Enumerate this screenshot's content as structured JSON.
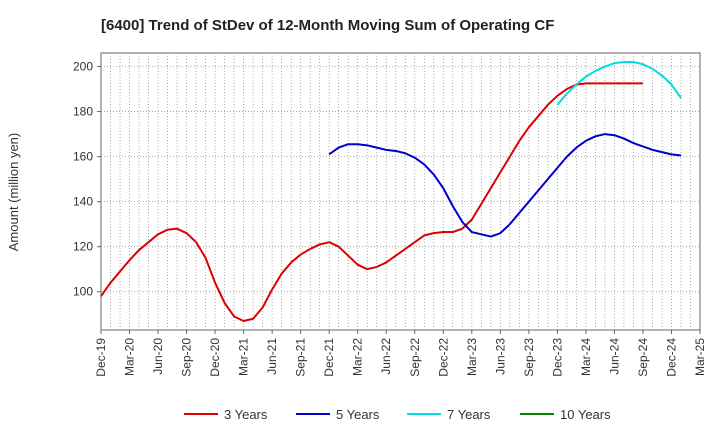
{
  "chart_data": {
    "type": "line",
    "title": "[6400]  Trend of StDev of 12-Month Moving Sum of Operating CF",
    "xlabel": "",
    "ylabel": "Amount (million yen)",
    "ylim": [
      83,
      206
    ],
    "yticks": [
      100,
      120,
      140,
      160,
      180,
      200
    ],
    "x_tick_labels": [
      "Dec-19",
      "Mar-20",
      "Jun-20",
      "Sep-20",
      "Dec-20",
      "Mar-21",
      "Jun-21",
      "Sep-21",
      "Dec-21",
      "Mar-22",
      "Jun-22",
      "Sep-22",
      "Dec-22",
      "Mar-23",
      "Jun-23",
      "Sep-23",
      "Dec-23",
      "Mar-24",
      "Jun-24",
      "Sep-24",
      "Dec-24",
      "Mar-25"
    ],
    "grid": true,
    "legend_position": "bottom",
    "series": [
      {
        "name": "3 Years",
        "color": "#dd0000",
        "start_month": 0,
        "values": [
          98,
          104,
          109,
          114,
          118.5,
          122,
          125.5,
          127.5,
          128,
          126,
          122,
          115,
          104,
          95,
          89,
          87,
          88,
          93,
          101,
          108,
          113,
          116.5,
          119,
          121,
          122,
          120,
          116,
          112,
          110,
          111,
          113,
          116,
          119,
          122,
          125,
          126,
          126.5,
          126.5,
          128,
          132,
          139,
          146,
          153,
          160,
          167,
          173,
          178,
          183,
          187,
          190,
          192,
          192.5,
          192.5,
          192.5,
          192.5,
          192.5,
          192.5,
          192.5
        ]
      },
      {
        "name": "5 Years",
        "color": "#0000cc",
        "start_month": 24,
        "values": [
          161,
          164,
          165.5,
          165.5,
          165,
          164,
          163,
          162.5,
          161.5,
          159.5,
          156.5,
          152,
          146,
          138,
          131,
          126.5,
          125.5,
          124.5,
          126,
          130,
          135,
          140,
          145,
          150,
          155,
          160,
          164,
          167,
          169,
          170,
          169.5,
          168,
          166,
          164.5,
          163,
          162,
          161,
          160.5
        ]
      },
      {
        "name": "7 Years",
        "color": "#00dddd",
        "start_month": 48,
        "values": [
          183,
          188,
          192,
          195.5,
          198,
          200,
          201.5,
          202,
          202,
          201,
          199,
          196,
          192,
          186
        ]
      },
      {
        "name": "10 Years",
        "color": "#008800",
        "start_month": 0,
        "values": []
      }
    ]
  }
}
